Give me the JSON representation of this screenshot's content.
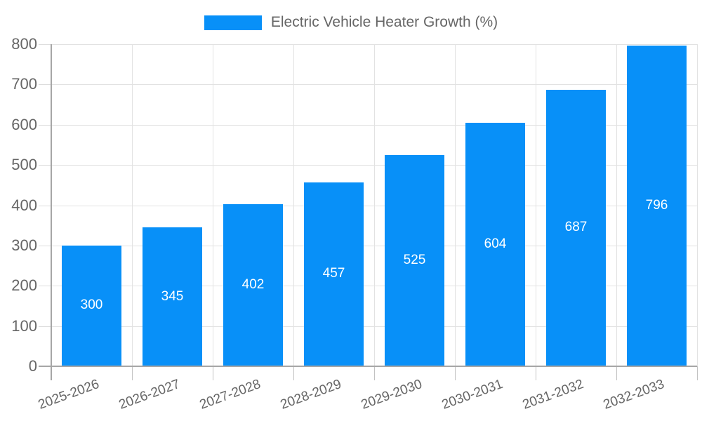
{
  "legend": {
    "label": "Electric Vehicle Heater Growth (%)",
    "swatch_color": "#0890F8"
  },
  "chart_data": {
    "type": "bar",
    "title": "Electric Vehicle Heater Growth (%)",
    "categories": [
      "2025-2026",
      "2026-2027",
      "2027-2028",
      "2028-2029",
      "2029-2030",
      "2030-2031",
      "2031-2032",
      "2032-2033"
    ],
    "values": [
      300,
      345,
      402,
      457,
      525,
      604,
      687,
      796
    ],
    "xlabel": "",
    "ylabel": "",
    "ylim": [
      0,
      800
    ],
    "ytick_step": 100,
    "yticks": [
      0,
      100,
      200,
      300,
      400,
      500,
      600,
      700,
      800
    ],
    "grid": true,
    "legend_position": "top-center",
    "bar_color": "#0890F8",
    "bar_value_label_color": "#FFFFFF",
    "axis_text_color": "#666666",
    "gridline_color": "#E2E2E2",
    "axis_line_color": "#A6A6A6"
  }
}
